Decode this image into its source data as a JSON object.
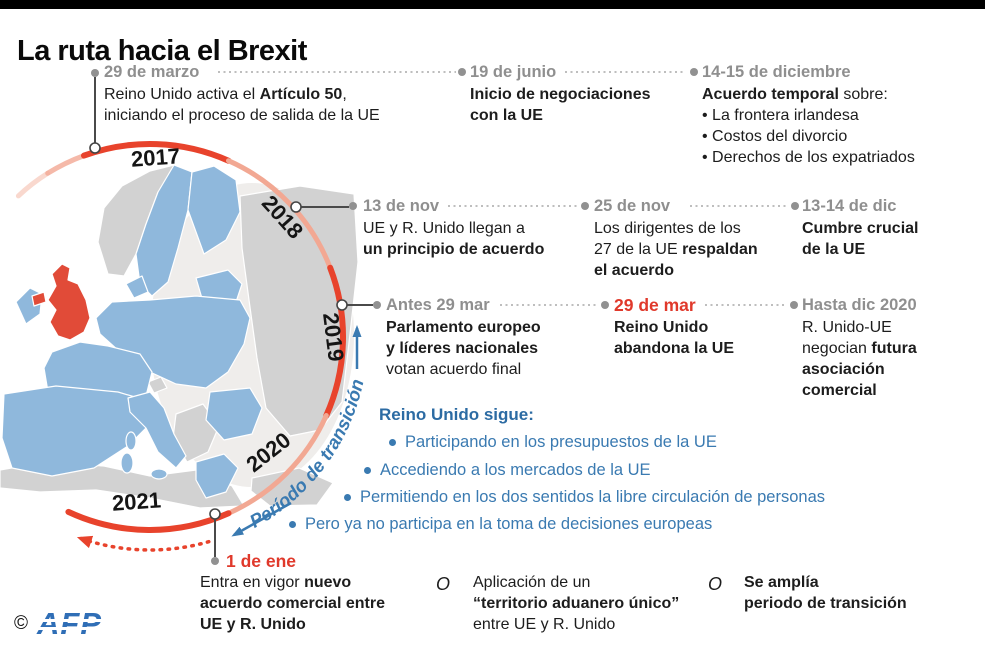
{
  "title": "La ruta hacia el Brexit",
  "colors": {
    "accent_red": "#e8432c",
    "salmon_arc": "#f2a893",
    "timeline_blue": "#3a7ab1",
    "date_gray": "#8f8f8f",
    "map_eu_blue": "#8fb8dc",
    "map_uk_red": "#e14b38",
    "map_non_eu_gray": "#d2d2d2"
  },
  "years": [
    "2017",
    "2018",
    "2019",
    "2020",
    "2021"
  ],
  "transition_label": "Período de transición",
  "entries": [
    {
      "date": "29 de marzo",
      "body": [
        {
          "t": "Reino Unido activa el "
        },
        {
          "t": "Artículo 50",
          "b": true
        },
        {
          "t": ",\niniciando el proceso de salida de la UE"
        }
      ]
    },
    {
      "date": "19 de junio",
      "body": [
        {
          "t": "Inicio de negociaciones\ncon la UE",
          "b": true
        }
      ]
    },
    {
      "date": "14-15 de diciembre",
      "body": [
        {
          "t": "Acuerdo temporal",
          "b": true
        },
        {
          "t": " sobre:\n• La frontera irlandesa\n• Costos del divorcio\n• Derechos de los expatriados"
        }
      ]
    },
    {
      "date": "13 de nov",
      "body": [
        {
          "t": "UE y R. Unido llegan a\n"
        },
        {
          "t": "un principio de acuerdo",
          "b": true
        }
      ]
    },
    {
      "date": "25 de nov",
      "body": [
        {
          "t": "Los dirigentes de los\n27 de la UE "
        },
        {
          "t": "respaldan\nel acuerdo",
          "b": true
        }
      ]
    },
    {
      "date": "13-14 de dic",
      "body": [
        {
          "t": "Cumbre crucial\nde la UE",
          "b": true
        }
      ]
    },
    {
      "date": "Antes 29 mar",
      "body": [
        {
          "t": "Parlamento europeo\ny líderes nacionales",
          "b": true
        },
        {
          "t": "\nvotan acuerdo final"
        }
      ]
    },
    {
      "date": "29 de mar",
      "body": [
        {
          "t": "Reino Unido\nabandona la UE",
          "b": true
        }
      ]
    },
    {
      "date": "Hasta dic 2020",
      "body": [
        {
          "t": "R. Unido-UE\nnegocian "
        },
        {
          "t": "futura\nasociación\ncomercial",
          "b": true
        }
      ]
    }
  ],
  "uk_status": {
    "heading": "Reino Unido sigue:",
    "items": [
      "Participando en los presupuestos de la UE",
      "Accediendo a los mercados de la UE",
      "Permitiendo en los dos sentidos la libre circulación de personas",
      "Pero ya no participa en la toma de decisiones europeas"
    ]
  },
  "final": {
    "date": "1 de ene",
    "separator": "O",
    "options": [
      [
        {
          "t": "Entra en vigor "
        },
        {
          "t": "nuevo\nacuerdo comercial entre\nUE y R. Unido",
          "b": true
        }
      ],
      [
        {
          "t": "Aplicación de un\n"
        },
        {
          "t": "“territorio aduanero único”",
          "b": true
        },
        {
          "t": "\nentre UE y R. Unido"
        }
      ],
      [
        {
          "t": "Se amplía\nperiodo de transición",
          "b": true
        }
      ]
    ]
  },
  "footer": {
    "copyright": "©",
    "agency": "AFP"
  }
}
